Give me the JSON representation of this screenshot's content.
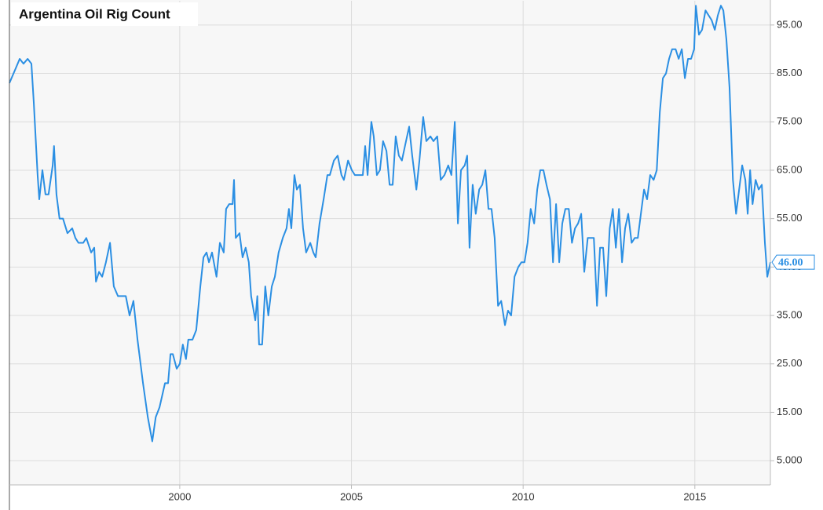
{
  "chart_data": {
    "type": "line",
    "title": "Argentina Oil Rig Count",
    "color": "#2b8fe3",
    "grid": true,
    "x": [
      1995.04,
      1995.22,
      1995.34,
      1995.45,
      1995.57,
      1995.68,
      1995.75,
      1995.86,
      1995.91,
      1996.0,
      1996.09,
      1996.18,
      1996.3,
      1996.34,
      1996.41,
      1996.5,
      1996.6,
      1996.73,
      1996.87,
      1996.96,
      1997.05,
      1997.19,
      1997.28,
      1997.42,
      1997.51,
      1997.56,
      1997.65,
      1997.74,
      1997.85,
      1997.97,
      1998.08,
      1998.2,
      1998.43,
      1998.54,
      1998.65,
      1998.77,
      1998.93,
      1999.07,
      1999.2,
      1999.3,
      1999.41,
      1999.57,
      1999.66,
      1999.73,
      1999.8,
      1999.91,
      2000.0,
      2000.09,
      2000.18,
      2000.25,
      2000.37,
      2000.48,
      2000.6,
      2000.69,
      2000.78,
      2000.85,
      2000.94,
      2001.07,
      2001.17,
      2001.28,
      2001.35,
      2001.44,
      2001.54,
      2001.58,
      2001.63,
      2001.74,
      2001.83,
      2001.92,
      2002.01,
      2002.08,
      2002.2,
      2002.26,
      2002.31,
      2002.4,
      2002.49,
      2002.58,
      2002.68,
      2002.77,
      2002.88,
      2003.0,
      2003.11,
      2003.18,
      2003.25,
      2003.34,
      2003.41,
      2003.5,
      2003.59,
      2003.68,
      2003.8,
      2003.89,
      2003.96,
      2004.07,
      2004.19,
      2004.3,
      2004.37,
      2004.49,
      2004.6,
      2004.71,
      2004.78,
      2004.9,
      2005.01,
      2005.1,
      2005.24,
      2005.33,
      2005.4,
      2005.47,
      2005.58,
      2005.65,
      2005.74,
      2005.83,
      2005.92,
      2006.02,
      2006.11,
      2006.2,
      2006.29,
      2006.38,
      2006.47,
      2006.56,
      2006.68,
      2006.77,
      2006.89,
      2006.98,
      2007.09,
      2007.18,
      2007.3,
      2007.39,
      2007.5,
      2007.6,
      2007.71,
      2007.82,
      2007.91,
      2008.01,
      2008.1,
      2008.19,
      2008.3,
      2008.37,
      2008.44,
      2008.53,
      2008.62,
      2008.72,
      2008.81,
      2008.9,
      2008.99,
      2009.08,
      2009.17,
      2009.27,
      2009.36,
      2009.47,
      2009.56,
      2009.65,
      2009.75,
      2009.86,
      2009.95,
      2010.04,
      2010.13,
      2010.22,
      2010.32,
      2010.41,
      2010.5,
      2010.59,
      2010.68,
      2010.78,
      2010.87,
      2010.96,
      2011.05,
      2011.14,
      2011.23,
      2011.33,
      2011.42,
      2011.51,
      2011.6,
      2011.69,
      2011.78,
      2011.88,
      2011.97,
      2012.06,
      2012.15,
      2012.24,
      2012.33,
      2012.42,
      2012.52,
      2012.61,
      2012.7,
      2012.79,
      2012.88,
      2012.97,
      2013.06,
      2013.16,
      2013.25,
      2013.34,
      2013.43,
      2013.52,
      2013.61,
      2013.7,
      2013.8,
      2013.89,
      2013.98,
      2014.07,
      2014.16,
      2014.25,
      2014.34,
      2014.44,
      2014.53,
      2014.62,
      2014.71,
      2014.8,
      2014.89,
      2014.98,
      2015.03,
      2015.12,
      2015.21,
      2015.31,
      2015.4,
      2015.49,
      2015.58,
      2015.67,
      2015.76,
      2015.83,
      2015.92,
      2016.01,
      2016.11,
      2016.2,
      2016.29,
      2016.38,
      2016.47,
      2016.54,
      2016.61,
      2016.68,
      2016.77,
      2016.86,
      2016.95,
      2017.04,
      2017.11,
      2017.2
    ],
    "values": [
      83,
      86,
      88,
      87,
      88,
      87,
      79,
      64,
      59,
      65,
      60,
      60,
      66,
      70,
      60,
      55,
      55,
      52,
      53,
      51,
      50,
      50,
      51,
      48,
      49,
      42,
      44,
      43,
      46,
      50,
      41,
      39,
      39,
      35,
      38,
      30,
      21,
      14,
      9,
      14,
      16,
      21,
      21,
      27,
      27,
      24,
      25,
      29,
      26,
      30,
      30,
      32,
      41,
      47,
      48,
      46,
      48,
      43,
      50,
      48,
      57,
      58,
      58,
      63,
      51,
      52,
      47,
      49,
      46,
      39,
      34,
      39,
      29,
      29,
      41,
      35,
      41,
      43,
      48,
      51,
      53,
      57,
      53,
      64,
      61,
      62,
      53,
      48,
      50,
      48,
      47,
      54,
      59,
      64,
      64,
      67,
      68,
      64,
      63,
      67,
      65,
      64,
      64,
      64,
      70,
      64,
      75,
      72,
      64,
      65,
      71,
      69,
      62,
      62,
      72,
      68,
      67,
      70,
      74,
      68,
      61,
      67,
      76,
      71,
      72,
      71,
      72,
      63,
      64,
      66,
      64,
      75,
      54,
      65,
      66,
      68,
      49,
      62,
      56,
      61,
      62,
      65,
      57,
      57,
      51,
      37,
      38,
      33,
      36,
      35,
      43,
      45,
      46,
      46,
      50,
      57,
      54,
      61,
      65,
      65,
      62,
      59,
      46,
      58,
      46,
      54,
      57,
      57,
      50,
      53,
      54,
      56,
      44,
      51,
      51,
      51,
      37,
      49,
      49,
      39,
      53,
      57,
      49,
      57,
      46,
      53,
      56,
      50,
      51,
      51,
      56,
      61,
      59,
      64,
      63,
      65,
      77,
      84,
      85,
      88,
      90,
      90,
      88,
      90,
      84,
      88,
      88,
      90,
      99,
      93,
      94,
      98,
      97,
      96,
      94,
      97,
      99,
      98,
      92,
      82,
      63,
      56,
      61,
      66,
      63,
      56,
      65,
      58,
      63,
      61,
      62,
      50,
      43,
      46
    ],
    "end_label": {
      "value": 46,
      "label": "46.00"
    },
    "xlim": [
      1995.04,
      2017.2
    ],
    "ylim": [
      0,
      100
    ],
    "xticks": [
      2000,
      2005,
      2010,
      2015
    ],
    "yticks": [
      {
        "value": 5,
        "label": "5.000"
      },
      {
        "value": 15,
        "label": "15.00"
      },
      {
        "value": 25,
        "label": "25.00"
      },
      {
        "value": 35,
        "label": "35.00"
      },
      {
        "value": 45,
        "label": "45.00"
      },
      {
        "value": 55,
        "label": "55.00"
      },
      {
        "value": 65,
        "label": "65.00"
      },
      {
        "value": 75,
        "label": "75.00"
      },
      {
        "value": 85,
        "label": "85.00"
      },
      {
        "value": 95,
        "label": "95.00"
      }
    ]
  }
}
